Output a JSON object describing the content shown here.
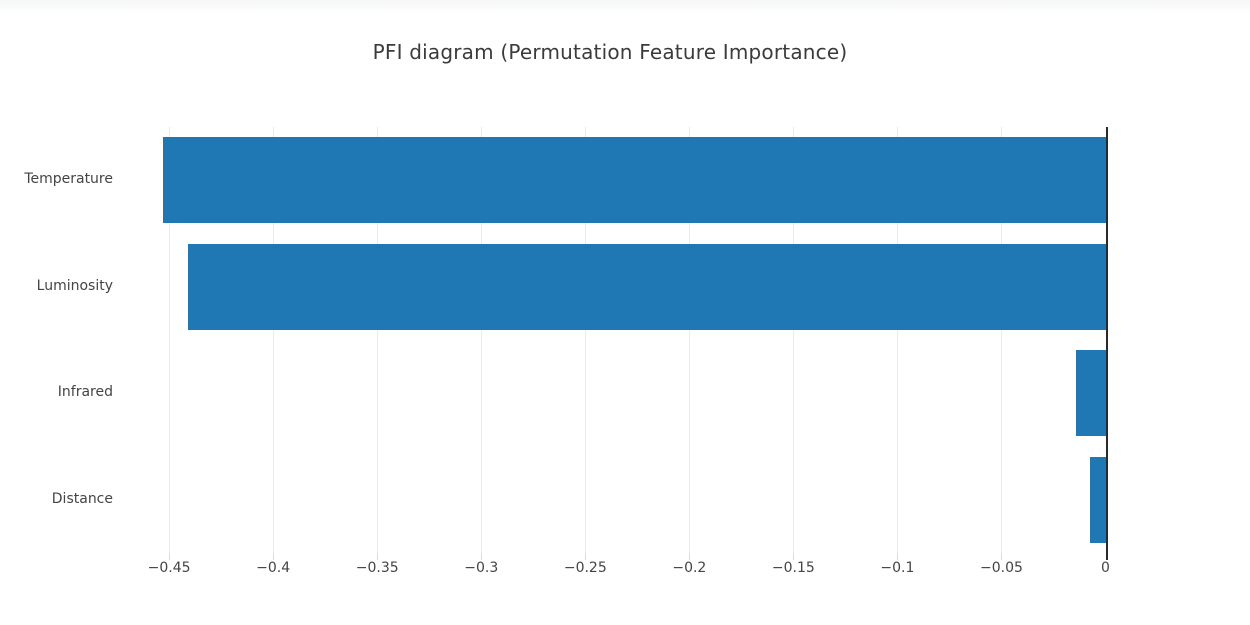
{
  "page": {
    "title": "PFI diagram (Permutation Feature Importance)"
  },
  "chart_data": {
    "type": "bar",
    "orientation": "horizontal",
    "title": "PFI diagram (Permutation Feature Importance)",
    "categories": [
      "Temperature",
      "Luminosity",
      "Infrared",
      "Distance"
    ],
    "values": [
      -0.453,
      -0.441,
      -0.014,
      -0.0075
    ],
    "xlabel": "",
    "ylabel": "",
    "x_ticks": [
      -0.45,
      -0.4,
      -0.35,
      -0.3,
      -0.25,
      -0.2,
      -0.15,
      -0.1,
      -0.05,
      0
    ],
    "x_tick_labels": [
      "−0.45",
      "−0.4",
      "−0.35",
      "−0.3",
      "−0.25",
      "−0.2",
      "−0.15",
      "−0.1",
      "−0.05",
      "0"
    ],
    "xlim": [
      -0.464,
      0.0406
    ],
    "grid": true,
    "legend": "none",
    "colors": {
      "bar": "#1f77b4",
      "zeroline": "#2a2a2a",
      "gridline": "#ebebeb",
      "tick": "#dcdcdc",
      "tick_text": "#444444",
      "category_text": "#444444",
      "title_text": "#3b3b3b",
      "background": "#ffffff"
    }
  }
}
